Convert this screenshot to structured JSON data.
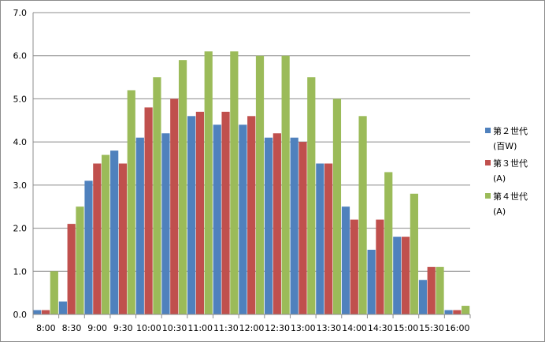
{
  "chart_data": {
    "type": "bar",
    "categories": [
      "8:00",
      "8:30",
      "9:00",
      "9:30",
      "10:00",
      "10:30",
      "11:00",
      "11:30",
      "12:00",
      "12:30",
      "13:00",
      "13:30",
      "14:00",
      "14:30",
      "15:00",
      "15:30",
      "16:00"
    ],
    "series": [
      {
        "name": "第２世代(百W)",
        "legend_lines": [
          "第２世代",
          "(百W)"
        ],
        "color": "#4f81bd",
        "values": [
          0.1,
          0.3,
          3.1,
          3.8,
          4.1,
          4.2,
          4.6,
          4.4,
          4.4,
          4.1,
          4.1,
          3.5,
          2.5,
          1.5,
          1.8,
          0.8,
          0.1
        ]
      },
      {
        "name": "第３世代(A)",
        "legend_lines": [
          "第３世代",
          "(A)"
        ],
        "color": "#c0504d",
        "values": [
          0.1,
          2.1,
          3.5,
          3.5,
          4.8,
          5.0,
          4.7,
          4.7,
          4.6,
          4.2,
          4.0,
          3.5,
          2.2,
          2.2,
          1.8,
          1.1,
          0.1
        ]
      },
      {
        "name": "第４世代(A)",
        "legend_lines": [
          "第４世代",
          "(A)"
        ],
        "color": "#9bbb59",
        "values": [
          1.0,
          2.5,
          3.7,
          5.2,
          5.5,
          5.9,
          6.1,
          6.1,
          6.0,
          6.0,
          5.5,
          5.0,
          4.6,
          3.3,
          2.8,
          1.1,
          0.2
        ]
      }
    ],
    "y_ticks": [
      "0.0",
      "1.0",
      "2.0",
      "3.0",
      "4.0",
      "5.0",
      "6.0",
      "7.0"
    ],
    "ylim": [
      0,
      7
    ],
    "grid": true,
    "legend_position": "right",
    "title": "",
    "xlabel": "",
    "ylabel": ""
  }
}
